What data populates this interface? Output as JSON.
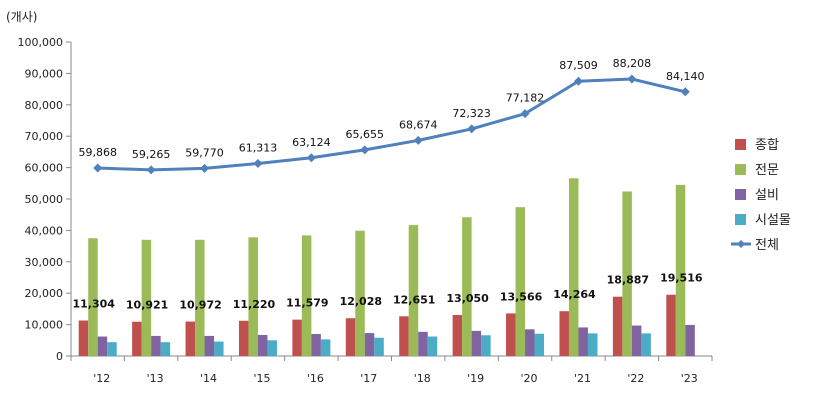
{
  "chart_data": {
    "type": "bar",
    "unit_label": "(개사)",
    "categories": [
      "'12",
      "'13",
      "'14",
      "'15",
      "'16",
      "'17",
      "'18",
      "'19",
      "'20",
      "'21",
      "'22",
      "'23"
    ],
    "ylim": [
      0,
      100000
    ],
    "yticks": [
      "0",
      "10,000",
      "20,000",
      "30,000",
      "40,000",
      "50,000",
      "60,000",
      "70,000",
      "80,000",
      "90,000",
      "100,000"
    ],
    "grid": false,
    "legend_position": "right",
    "series": [
      {
        "name": "종합",
        "type": "bar",
        "color": "#c0504d",
        "values": [
          11304,
          10921,
          10972,
          11220,
          11579,
          12028,
          12651,
          13050,
          13566,
          14264,
          18887,
          19516
        ],
        "labels": [
          "11,304",
          "10,921",
          "10,972",
          "11,220",
          "11,579",
          "12,028",
          "12,651",
          "13,050",
          "13,566",
          "14,264",
          "18,887",
          "19,516"
        ]
      },
      {
        "name": "전문",
        "type": "bar",
        "color": "#9bbb59",
        "values": [
          37500,
          37000,
          37000,
          37800,
          38400,
          39900,
          41700,
          44200,
          47400,
          56600,
          52400,
          54500
        ]
      },
      {
        "name": "설비",
        "type": "bar",
        "color": "#8064a2",
        "values": [
          6200,
          6400,
          6400,
          6700,
          7000,
          7300,
          7700,
          8000,
          8500,
          9100,
          9700,
          9900
        ]
      },
      {
        "name": "시설물",
        "type": "bar",
        "color": "#4bacc6",
        "values": [
          4400,
          4400,
          4600,
          5000,
          5300,
          5800,
          6200,
          6600,
          7100,
          7200,
          7200,
          null
        ]
      },
      {
        "name": "전체",
        "type": "line",
        "color": "#4f81bd",
        "values": [
          59868,
          59265,
          59770,
          61313,
          63124,
          65655,
          68674,
          72323,
          77182,
          87509,
          88208,
          84140
        ],
        "labels": [
          "59,868",
          "59,265",
          "59,770",
          "61,313",
          "63,124",
          "65,655",
          "68,674",
          "72,323",
          "77,182",
          "87,509",
          "88,208",
          "84,140"
        ]
      }
    ]
  }
}
